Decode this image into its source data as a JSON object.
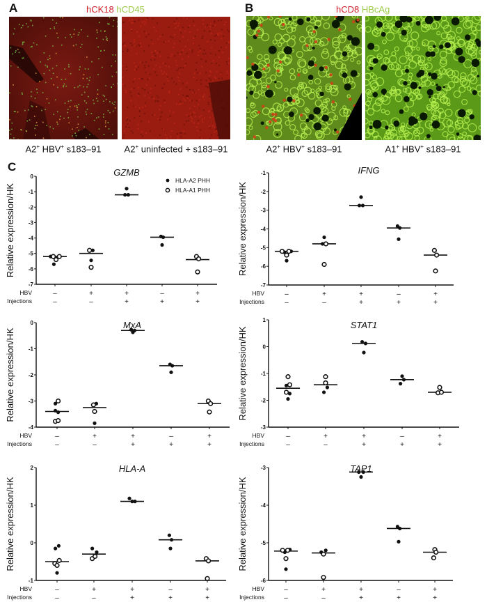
{
  "panels": {
    "A": {
      "letter": "A",
      "stain_red": "hCK18",
      "stain_green": "hCD45",
      "images": [
        {
          "caption_parts": [
            "A2",
            "+",
            " HBV",
            "+",
            " s183–91"
          ],
          "caption": "A2+ HBV+ s183–91"
        },
        {
          "caption_parts": [
            "A2",
            "+",
            " uninfected + s183–91",
            "",
            ""
          ],
          "caption": "A2+ uninfected + s183–91"
        }
      ]
    },
    "B": {
      "letter": "B",
      "stain_red": "hCD8",
      "stain_green": "HBcAg",
      "images": [
        {
          "caption_parts": [
            "A2",
            "+",
            " HBV",
            "+",
            " s183–91"
          ],
          "caption": "A2+ HBV+ s183–91"
        },
        {
          "caption_parts": [
            "A1",
            "+",
            " HBV",
            "+",
            " s183–91"
          ],
          "caption": "A1+ HBV+ s183–91"
        }
      ]
    },
    "C": {
      "letter": "C"
    }
  },
  "colors": {
    "red_stain": "#d0202a",
    "green_stain": "#9ccb4a",
    "axis": "#111111",
    "marker": "#111111"
  },
  "legend": {
    "filled": "HLA-A2 PHH",
    "open": "HLA-A1 PHH"
  },
  "row_labels": {
    "hbv": "HBV",
    "injections": "Injections"
  },
  "conditions": {
    "hbv": [
      "–",
      "+",
      "+",
      "–",
      "+"
    ],
    "injections": [
      "–",
      "–",
      "+",
      "+",
      "+"
    ]
  },
  "chart_data": [
    {
      "type": "scatter",
      "title": "GZMB",
      "ylabel": "Relative expression/HK",
      "ylim": [
        -7,
        0
      ],
      "yticks": [
        0,
        -1,
        -2,
        -3,
        -4,
        -5,
        -6,
        -7
      ],
      "categories": [
        "HBV– Inj–",
        "HBV+ Inj–",
        "HBV+ Inj+",
        "HBV– Inj+",
        "HBV+ Inj+"
      ],
      "medians": [
        -5.2,
        -5.0,
        -1.2,
        -3.95,
        -5.4
      ],
      "series": [
        {
          "name": "HLA-A2 PHH",
          "marker": "filled",
          "points": [
            [
              0,
              -5.2,
              -0.4
            ],
            [
              0,
              -5.7,
              -0.1
            ],
            [
              0,
              -5.25,
              0.25
            ],
            [
              1,
              -4.8,
              0.15
            ],
            [
              1,
              -5.45,
              0
            ],
            [
              2,
              -0.8,
              0
            ],
            [
              2,
              -1.2,
              -0.15
            ],
            [
              2,
              -1.2,
              0.15
            ],
            [
              3,
              -3.9,
              -0.1
            ],
            [
              3,
              -3.95,
              0.1
            ],
            [
              3,
              -4.45,
              0
            ]
          ]
        },
        {
          "name": "HLA-A1 PHH",
          "marker": "open",
          "points": [
            [
              0,
              -5.2,
              -0.15
            ],
            [
              0,
              -5.4,
              0.1
            ],
            [
              0,
              -5.2,
              0.4
            ],
            [
              1,
              -4.8,
              -0.15
            ],
            [
              1,
              -5.9,
              0
            ],
            [
              4,
              -5.2,
              -0.1
            ],
            [
              4,
              -5.35,
              0.1
            ],
            [
              4,
              -6.2,
              0
            ]
          ]
        }
      ]
    },
    {
      "type": "scatter",
      "title": "IFNG",
      "ylabel": "Relative expression/HK",
      "ylim": [
        -7,
        -1
      ],
      "yticks": [
        -1,
        -2,
        -3,
        -4,
        -5,
        -6,
        -7
      ],
      "categories": [
        "HBV– Inj–",
        "HBV+ Inj–",
        "HBV+ Inj+",
        "HBV– Inj+",
        "HBV+ Inj+"
      ],
      "medians": [
        -5.2,
        -4.8,
        -2.75,
        -3.95,
        -5.4
      ],
      "series": [
        {
          "name": "HLA-A2 PHH",
          "marker": "filled",
          "points": [
            [
              0,
              -5.25,
              -0.2
            ],
            [
              0,
              -5.2,
              0.4
            ],
            [
              0,
              -5.7,
              0
            ],
            [
              1,
              -4.45,
              0
            ],
            [
              1,
              -4.8,
              -0.15
            ],
            [
              2,
              -2.3,
              0
            ],
            [
              2,
              -2.75,
              -0.15
            ],
            [
              2,
              -2.75,
              0.15
            ],
            [
              3,
              -3.85,
              -0.1
            ],
            [
              3,
              -3.95,
              0.1
            ],
            [
              3,
              -4.55,
              0
            ]
          ]
        },
        {
          "name": "HLA-A1 PHH",
          "marker": "open",
          "points": [
            [
              0,
              -5.2,
              -0.4
            ],
            [
              0,
              -5.4,
              0
            ],
            [
              0,
              -5.2,
              0.2
            ],
            [
              1,
              -4.8,
              0.15
            ],
            [
              1,
              -5.9,
              0
            ],
            [
              4,
              -5.15,
              -0.1
            ],
            [
              4,
              -5.4,
              0.1
            ],
            [
              4,
              -6.25,
              0
            ]
          ]
        }
      ]
    },
    {
      "type": "scatter",
      "title": "MxA",
      "ylabel": "Relative expression/HK",
      "ylim": [
        -4,
        0
      ],
      "yticks": [
        0,
        -1,
        -2,
        -3,
        -4
      ],
      "categories": [
        "HBV– Inj–",
        "HBV+ Inj–",
        "HBV+ Inj+",
        "HBV– Inj+",
        "HBV+ Inj+"
      ],
      "medians": [
        -3.4,
        -3.25,
        -0.3,
        -1.65,
        -3.1
      ],
      "series": [
        {
          "name": "HLA-A2 PHH",
          "marker": "filled",
          "points": [
            [
              0,
              -3.1,
              -0.15
            ],
            [
              0,
              -3.37,
              -0.15
            ],
            [
              0,
              -3.43,
              0.1
            ],
            [
              1,
              -3.1,
              0.15
            ],
            [
              1,
              -3.85,
              0
            ],
            [
              2,
              -0.27,
              -0.15
            ],
            [
              2,
              -0.37,
              0
            ],
            [
              2,
              -0.3,
              0.15
            ],
            [
              3,
              -1.6,
              -0.1
            ],
            [
              3,
              -1.65,
              0.1
            ],
            [
              3,
              -1.9,
              0
            ]
          ]
        },
        {
          "name": "HLA-A1 PHH",
          "marker": "open",
          "points": [
            [
              0,
              -3.0,
              0.1
            ],
            [
              0,
              -3.78,
              -0.15
            ],
            [
              0,
              -3.75,
              0.1
            ],
            [
              1,
              -3.15,
              -0.1
            ],
            [
              1,
              -3.4,
              0
            ],
            [
              4,
              -3.0,
              -0.1
            ],
            [
              4,
              -3.1,
              0.1
            ],
            [
              4,
              -3.42,
              0
            ]
          ]
        }
      ]
    },
    {
      "type": "scatter",
      "title": "STAT1",
      "ylabel": "Relative expression/HK",
      "ylim": [
        -3,
        1
      ],
      "yticks": [
        1,
        0,
        -1,
        -2,
        -3
      ],
      "categories": [
        "HBV– Inj–",
        "HBV+ Inj–",
        "HBV+ Inj+",
        "HBV– Inj+",
        "HBV+ Inj+"
      ],
      "medians": [
        -1.55,
        -1.42,
        0.12,
        -1.23,
        -1.7
      ],
      "series": [
        {
          "name": "HLA-A2 PHH",
          "marker": "filled",
          "points": [
            [
              0,
              -1.45,
              -0.15
            ],
            [
              0,
              -1.75,
              0.15
            ],
            [
              0,
              -1.95,
              0
            ],
            [
              1,
              -1.7,
              -0.15
            ],
            [
              1,
              -1.52,
              0.15
            ],
            [
              2,
              0.18,
              -0.15
            ],
            [
              2,
              0.12,
              0.15
            ],
            [
              2,
              -0.22,
              0
            ],
            [
              3,
              -1.1,
              0
            ],
            [
              3,
              -1.23,
              0.15
            ],
            [
              3,
              -1.38,
              -0.15
            ]
          ]
        },
        {
          "name": "HLA-A1 PHH",
          "marker": "open",
          "points": [
            [
              0,
              -1.12,
              0
            ],
            [
              0,
              -1.42,
              0.15
            ],
            [
              0,
              -1.7,
              -0.15
            ],
            [
              1,
              -1.12,
              0
            ],
            [
              1,
              -1.35,
              0
            ],
            [
              4,
              -1.52,
              0
            ],
            [
              4,
              -1.72,
              -0.15
            ],
            [
              4,
              -1.7,
              0.15
            ]
          ]
        }
      ]
    },
    {
      "type": "scatter",
      "title": "HLA-A",
      "ylabel": "Relative expression/HK",
      "ylim": [
        -1,
        2
      ],
      "yticks": [
        2,
        1,
        0,
        -1
      ],
      "categories": [
        "HBV– Inj–",
        "HBV+ Inj–",
        "HBV+ Inj+",
        "HBV– Inj+",
        "HBV+ Inj+"
      ],
      "medians": [
        -0.5,
        -0.3,
        1.1,
        0.08,
        -0.48
      ],
      "series": [
        {
          "name": "HLA-A2 PHH",
          "marker": "filled",
          "points": [
            [
              0,
              -0.15,
              -0.15
            ],
            [
              0,
              -0.08,
              0.15
            ],
            [
              0,
              -0.8,
              0
            ],
            [
              1,
              -0.15,
              -0.15
            ],
            [
              1,
              -0.25,
              0.25
            ],
            [
              2,
              1.18,
              -0.25
            ],
            [
              2,
              1.1,
              0
            ],
            [
              2,
              1.1,
              0.25
            ],
            [
              3,
              0.2,
              -0.1
            ],
            [
              3,
              0.08,
              0.1
            ],
            [
              3,
              -0.15,
              0
            ]
          ]
        },
        {
          "name": "HLA-A1 PHH",
          "marker": "open",
          "points": [
            [
              0,
              -0.55,
              -0.2
            ],
            [
              0,
              -0.6,
              0
            ],
            [
              0,
              -0.47,
              0.2
            ],
            [
              1,
              -0.42,
              -0.15
            ],
            [
              1,
              -0.36,
              0.1
            ],
            [
              4,
              -0.42,
              -0.1
            ],
            [
              4,
              -0.48,
              0.1
            ],
            [
              4,
              -0.95,
              0
            ]
          ]
        }
      ]
    },
    {
      "type": "scatter",
      "title": "TAP1",
      "ylabel": "Relative expression/HK",
      "ylim": [
        -6,
        -3
      ],
      "yticks": [
        -3,
        -4,
        -5,
        -6
      ],
      "categories": [
        "HBV– Inj–",
        "HBV+ Inj–",
        "HBV+ Inj+",
        "HBV– Inj+",
        "HBV+ Inj+"
      ],
      "medians": [
        -5.22,
        -5.27,
        -3.12,
        -4.62,
        -5.25
      ],
      "series": [
        {
          "name": "HLA-A2 PHH",
          "marker": "filled",
          "points": [
            [
              0,
              -5.25,
              -0.1
            ],
            [
              0,
              -5.18,
              0.35
            ],
            [
              0,
              -5.7,
              0
            ],
            [
              1,
              -5.25,
              -0.2
            ],
            [
              1,
              -5.2,
              0.2
            ],
            [
              2,
              -3.12,
              -0.2
            ],
            [
              2,
              -3.12,
              0.2
            ],
            [
              2,
              -3.25,
              0
            ],
            [
              3,
              -4.57,
              -0.1
            ],
            [
              3,
              -4.62,
              0.1
            ],
            [
              3,
              -4.97,
              0
            ]
          ]
        },
        {
          "name": "HLA-A1 PHH",
          "marker": "open",
          "points": [
            [
              0,
              -5.2,
              -0.3
            ],
            [
              0,
              -5.42,
              0
            ],
            [
              0,
              -5.2,
              0.15
            ],
            [
              1,
              -5.3,
              0
            ],
            [
              1,
              -5.92,
              0
            ],
            [
              4,
              -5.18,
              0
            ],
            [
              4,
              -5.25,
              0.1
            ],
            [
              4,
              -5.4,
              -0.1
            ]
          ]
        }
      ]
    }
  ]
}
